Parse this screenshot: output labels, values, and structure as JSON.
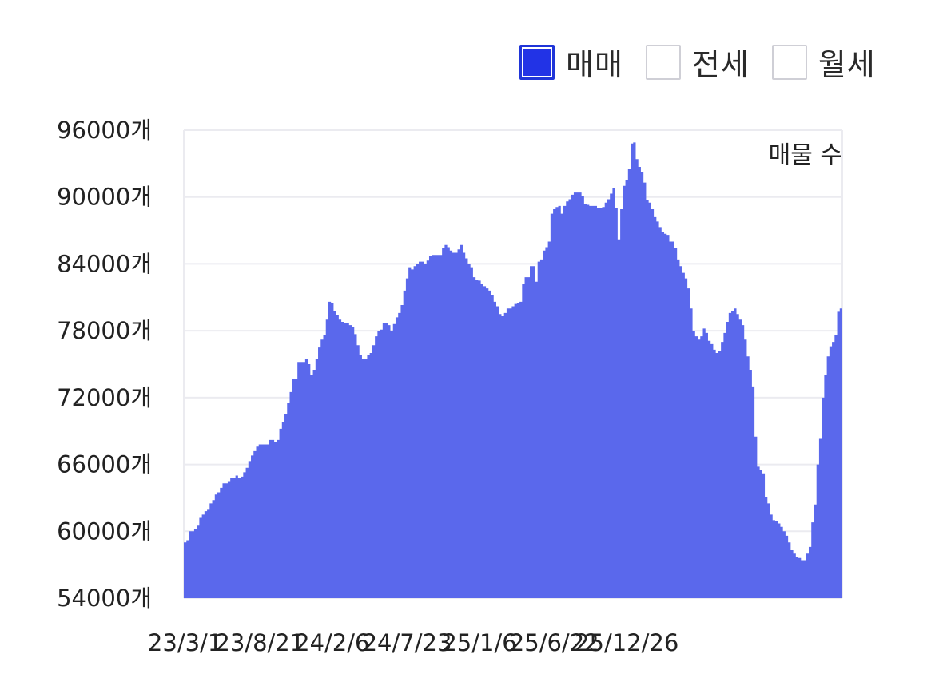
{
  "legend": {
    "items": [
      {
        "label": "매매",
        "active": true
      },
      {
        "label": "전세",
        "active": false
      },
      {
        "label": "월세",
        "active": false
      }
    ]
  },
  "colors": {
    "area": "#5a68ec",
    "legend_active": "#2233e6",
    "grid": "#ebebf0"
  },
  "chart_data": {
    "type": "area",
    "annotation": "매물 수",
    "ylim": [
      54000,
      96000
    ],
    "y_ticks": [
      54000,
      60000,
      66000,
      72000,
      78000,
      84000,
      90000,
      96000
    ],
    "y_tick_labels": [
      "54000개",
      "60000개",
      "66000개",
      "72000개",
      "78000개",
      "84000개",
      "90000개",
      "96000개"
    ],
    "x_tick_labels": [
      "23/3/1",
      "23/8/21",
      "24/2/6",
      "24/7/23",
      "25/1/6",
      "25/6/22",
      "25/12/26"
    ],
    "x_tick_index": [
      0,
      29,
      57,
      86,
      114,
      143,
      171
    ],
    "grid": true,
    "series": [
      {
        "values": [
          59000,
          59200,
          60000,
          60000,
          60200,
          60500,
          61200,
          61500,
          61800,
          62000,
          62500,
          62800,
          63300,
          63500,
          63900,
          64300,
          64300,
          64500,
          64800,
          64800,
          65000,
          64800,
          64900,
          65300,
          65700,
          66300,
          66800,
          67200,
          67600,
          67800,
          67800,
          67800,
          67800,
          68200,
          68200,
          68000,
          68200,
          69200,
          69800,
          70500,
          71500,
          72500,
          73700,
          73700,
          75200,
          75200,
          75200,
          75500,
          75000,
          74000,
          74500,
          75500,
          76500,
          77200,
          77600,
          79000,
          80600,
          80500,
          79800,
          79400,
          79000,
          78800,
          78700,
          78700,
          78500,
          78300,
          77700,
          76700,
          75800,
          75500,
          75500,
          75800,
          76000,
          76700,
          77500,
          78000,
          78100,
          78700,
          78700,
          78500,
          78000,
          78600,
          79200,
          79600,
          80300,
          81600,
          82700,
          83700,
          83500,
          83800,
          84000,
          84200,
          84200,
          84000,
          84300,
          84700,
          84800,
          84800,
          84800,
          84800,
          85400,
          85700,
          85500,
          85200,
          85000,
          85000,
          85300,
          85700,
          85000,
          84500,
          84000,
          83700,
          82800,
          82600,
          82500,
          82200,
          82000,
          81800,
          81600,
          81200,
          80600,
          80200,
          79500,
          79300,
          79600,
          80000,
          80000,
          80200,
          80400,
          80500,
          80600,
          82200,
          82800,
          82800,
          83800,
          83800,
          82400,
          84200,
          84400,
          85200,
          85500,
          86000,
          88500,
          88900,
          89100,
          89200,
          88500,
          89200,
          89600,
          89800,
          90200,
          90400,
          90400,
          90400,
          90100,
          89400,
          89300,
          89200,
          89200,
          89200,
          89000,
          89000,
          89100,
          89500,
          89800,
          90300,
          90800,
          89000,
          86200,
          88900,
          91000,
          91500,
          92500,
          94800,
          94900,
          93400,
          92700,
          92200,
          91300,
          89700,
          89500,
          88900,
          88200,
          87800,
          87300,
          86900,
          86700,
          86600,
          86000,
          86000,
          85400,
          84400,
          83800,
          83200,
          82700,
          81800,
          80000,
          78000,
          77500,
          77200,
          77500,
          78200,
          77800,
          77100,
          76800,
          76300,
          76000,
          76200,
          77000,
          77800,
          78800,
          79600,
          79800,
          80000,
          79500,
          79000,
          78500,
          77200,
          75700,
          74500,
          73000,
          68500,
          65800,
          65500,
          65200,
          63100,
          62500,
          61500,
          61000,
          60900,
          60700,
          60400,
          60000,
          59600,
          59000,
          58300,
          58000,
          57700,
          57600,
          57400,
          57400,
          58000,
          58600,
          60800,
          62400,
          66000,
          68300,
          72000,
          74000,
          75700,
          76600,
          77000,
          77600,
          79700,
          80000
        ]
      }
    ]
  }
}
